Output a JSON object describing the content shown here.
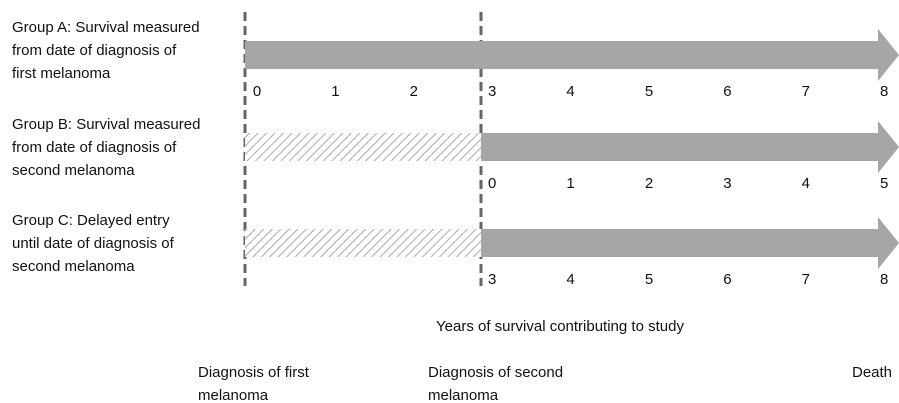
{
  "groups": [
    {
      "label_lines": [
        "Group A: Survival measured",
        "from date of diagnosis of",
        "first melanoma"
      ],
      "ticks": [
        0,
        1,
        2,
        3,
        4,
        5,
        6,
        7,
        8
      ]
    },
    {
      "label_lines": [
        "Group B: Survival measured",
        "from date of diagnosis of",
        "second melanoma"
      ],
      "ticks": [
        0,
        1,
        2,
        3,
        4,
        5
      ]
    },
    {
      "label_lines": [
        "Group C: Delayed entry",
        "until date of diagnosis of",
        "second melanoma"
      ],
      "ticks": [
        3,
        4,
        5,
        6,
        7,
        8
      ]
    }
  ],
  "axis_label": "Years of survival contributing to study",
  "markers": [
    {
      "label_lines": [
        "Diagnosis of first",
        "melanoma"
      ]
    },
    {
      "label_lines": [
        "Diagnosis of second",
        "melanoma"
      ]
    },
    {
      "label_lines": [
        "Death"
      ]
    }
  ]
}
